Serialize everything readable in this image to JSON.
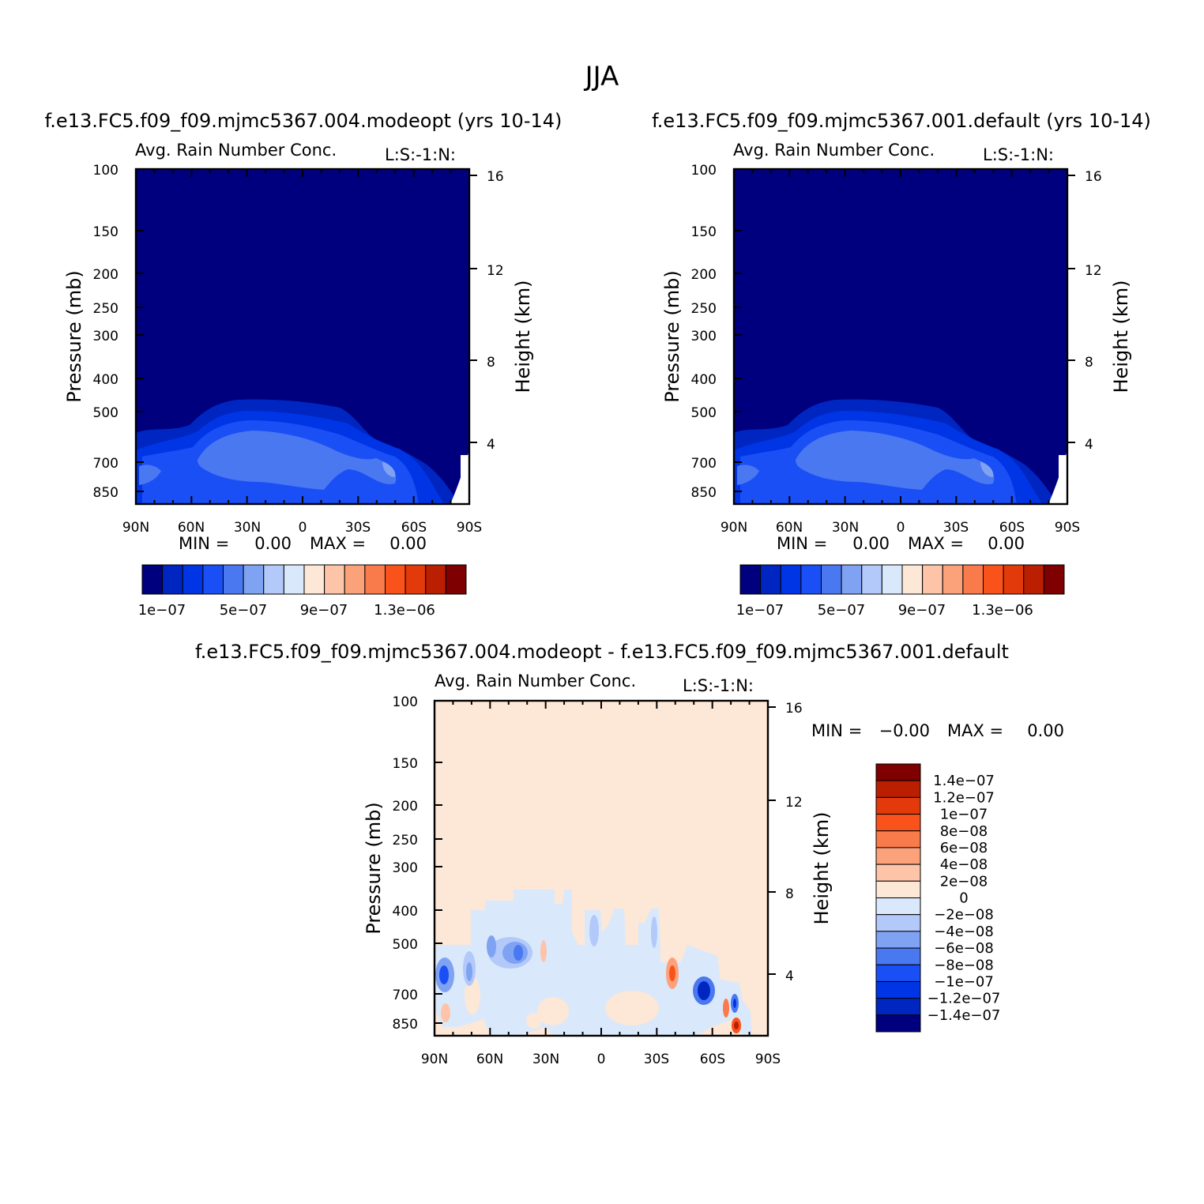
{
  "page_title": "JJA",
  "chart_data": [
    {
      "type": "heatmap",
      "panel": "top-left",
      "case_title": "f.e13.FC5.f09_f09.mjmc5367.004.modeopt (yrs 10-14)",
      "variable_title": "Avg. Rain Number Conc.",
      "code_label": "L:S:-1:N:",
      "ylabel": "Pressure (mb)",
      "y2label": "Height (km)",
      "pressure_ticks": [
        "100",
        "150",
        "200",
        "250",
        "300",
        "400",
        "500",
        "700",
        "850"
      ],
      "height_ticks": [
        "16",
        "12",
        "8",
        "4"
      ],
      "x_ticks": [
        "90N",
        "60N",
        "30N",
        "0",
        "30S",
        "60S",
        "90S"
      ],
      "min_label": "MIN =",
      "min_value": "0.00",
      "max_label": "MAX =",
      "max_value": "0.00",
      "colorbar_colors": [
        "#00007f",
        "#0026c2",
        "#0035e5",
        "#1a4ff5",
        "#4a78f0",
        "#7fa3f2",
        "#b2c9f9",
        "#d9e9fb",
        "#fde7d6",
        "#fdc4a8",
        "#fca27a",
        "#f97a4a",
        "#f9521a",
        "#e23a0a",
        "#b91f00",
        "#7f0000"
      ],
      "colorbar_labels": [
        "1e-07",
        "5e-07",
        "9e-07",
        "1.3e-06"
      ]
    },
    {
      "type": "heatmap",
      "panel": "top-right",
      "case_title": "f.e13.FC5.f09_f09.mjmc5367.001.default (yrs 10-14)",
      "variable_title": "Avg. Rain Number Conc.",
      "code_label": "L:S:-1:N:",
      "ylabel": "Pressure (mb)",
      "y2label": "Height (km)",
      "pressure_ticks": [
        "100",
        "150",
        "200",
        "250",
        "300",
        "400",
        "500",
        "700",
        "850"
      ],
      "height_ticks": [
        "16",
        "12",
        "8",
        "4"
      ],
      "x_ticks": [
        "90N",
        "60N",
        "30N",
        "0",
        "30S",
        "60S",
        "90S"
      ],
      "min_label": "MIN =",
      "min_value": "0.00",
      "max_label": "MAX =",
      "max_value": "0.00",
      "colorbar_colors": [
        "#00007f",
        "#0026c2",
        "#0035e5",
        "#1a4ff5",
        "#4a78f0",
        "#7fa3f2",
        "#b2c9f9",
        "#d9e9fb",
        "#fde7d6",
        "#fdc4a8",
        "#fca27a",
        "#f97a4a",
        "#f9521a",
        "#e23a0a",
        "#b91f00",
        "#7f0000"
      ],
      "colorbar_labels": [
        "1e-07",
        "5e-07",
        "9e-07",
        "1.3e-06"
      ]
    },
    {
      "type": "heatmap",
      "panel": "bottom-difference",
      "case_title": "f.e13.FC5.f09_f09.mjmc5367.004.modeopt - f.e13.FC5.f09_f09.mjmc5367.001.default",
      "variable_title": "Avg. Rain Number Conc.",
      "code_label": "L:S:-1:N:",
      "ylabel": "Pressure (mb)",
      "y2label": "Height (km)",
      "pressure_ticks": [
        "100",
        "150",
        "200",
        "250",
        "300",
        "400",
        "500",
        "700",
        "850"
      ],
      "height_ticks": [
        "16",
        "12",
        "8",
        "4"
      ],
      "x_ticks": [
        "90N",
        "60N",
        "30N",
        "0",
        "30S",
        "60S",
        "90S"
      ],
      "min_label": "MIN =",
      "min_value": "-0.00",
      "max_label": "MAX =",
      "max_value": "0.00",
      "colorbar_colors": [
        "#7f0000",
        "#b91f00",
        "#e23a0a",
        "#f9521a",
        "#f97a4a",
        "#fca27a",
        "#fdc4a8",
        "#fde7d6",
        "#d9e9fb",
        "#b2c9f9",
        "#7fa3f2",
        "#4a78f0",
        "#1a4ff5",
        "#0035e5",
        "#0026c2",
        "#00007f"
      ],
      "colorbar_labels": [
        "1.4e-07",
        "1.2e-07",
        "1e-07",
        "8e-08",
        "6e-08",
        "4e-08",
        "2e-08",
        "0",
        "-2e-08",
        "-4e-08",
        "-6e-08",
        "-8e-08",
        "-1e-07",
        "-1.2e-07",
        "-1.4e-07"
      ]
    }
  ]
}
